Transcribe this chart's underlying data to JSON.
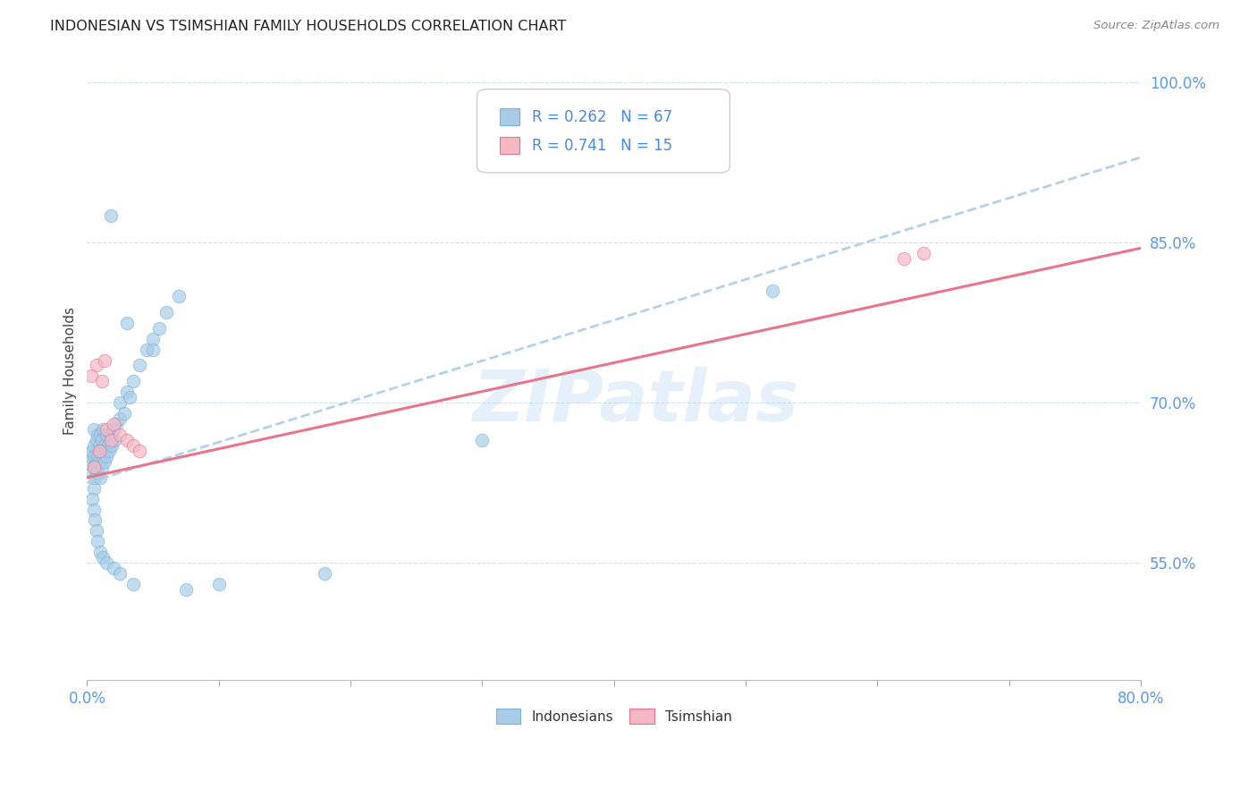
{
  "title": "INDONESIAN VS TSIMSHIAN FAMILY HOUSEHOLDS CORRELATION CHART",
  "source": "Source: ZipAtlas.com",
  "ylabel": "Family Households",
  "xlim": [
    0.0,
    80.0
  ],
  "ylim": [
    44.0,
    102.0
  ],
  "yticks": [
    55.0,
    70.0,
    85.0,
    100.0
  ],
  "indonesian_R": 0.262,
  "indonesian_N": 67,
  "tsimshian_R": 0.741,
  "tsimshian_N": 15,
  "blue_scatter_color": "#a8cce8",
  "blue_edge_color": "#7ab3d4",
  "pink_scatter_color": "#f5b8c4",
  "pink_edge_color": "#e87090",
  "blue_line_color": "#aacde8",
  "pink_line_color": "#e8758a",
  "watermark": "ZIPatlas",
  "blue_trend_x0": 0.0,
  "blue_trend_y0": 62.5,
  "blue_trend_x1": 80.0,
  "blue_trend_y1": 93.0,
  "pink_trend_x0": 0.0,
  "pink_trend_y0": 63.0,
  "pink_trend_x1": 80.0,
  "pink_trend_y1": 84.5,
  "indonesian_x": [
    0.2,
    0.3,
    0.4,
    0.4,
    0.5,
    0.5,
    0.5,
    0.5,
    0.6,
    0.6,
    0.7,
    0.7,
    0.8,
    0.8,
    0.8,
    0.9,
    0.9,
    1.0,
    1.0,
    1.0,
    1.1,
    1.1,
    1.2,
    1.2,
    1.3,
    1.3,
    1.4,
    1.5,
    1.5,
    1.6,
    1.7,
    1.8,
    1.9,
    2.0,
    2.1,
    2.2,
    2.5,
    2.5,
    2.8,
    3.0,
    3.2,
    3.5,
    4.0,
    4.5,
    5.0,
    5.5,
    6.0,
    7.0,
    0.4,
    0.5,
    0.6,
    0.7,
    0.8,
    1.0,
    1.2,
    1.5,
    2.0,
    2.5,
    3.5,
    7.5,
    10.0,
    18.0,
    30.0,
    52.0,
    3.0,
    5.0,
    1.8
  ],
  "indonesian_y": [
    65.0,
    64.5,
    63.5,
    65.5,
    62.0,
    64.0,
    66.0,
    67.5,
    63.0,
    65.0,
    64.0,
    66.5,
    63.5,
    65.0,
    67.0,
    64.5,
    66.0,
    63.0,
    65.5,
    67.0,
    64.0,
    66.5,
    65.0,
    67.5,
    64.5,
    66.0,
    65.5,
    67.0,
    65.0,
    66.0,
    65.5,
    67.0,
    66.0,
    67.5,
    66.5,
    68.0,
    68.5,
    70.0,
    69.0,
    71.0,
    70.5,
    72.0,
    73.5,
    75.0,
    76.0,
    77.0,
    78.5,
    80.0,
    61.0,
    60.0,
    59.0,
    58.0,
    57.0,
    56.0,
    55.5,
    55.0,
    54.5,
    54.0,
    53.0,
    52.5,
    53.0,
    54.0,
    66.5,
    80.5,
    77.5,
    75.0,
    87.5
  ],
  "tsimshian_x": [
    0.3,
    0.5,
    0.7,
    0.9,
    1.1,
    1.3,
    1.5,
    1.8,
    2.0,
    2.5,
    3.0,
    3.5,
    4.0,
    62.0,
    63.5
  ],
  "tsimshian_y": [
    72.5,
    64.0,
    73.5,
    65.5,
    72.0,
    74.0,
    67.5,
    66.5,
    68.0,
    67.0,
    66.5,
    66.0,
    65.5,
    83.5,
    84.0
  ]
}
